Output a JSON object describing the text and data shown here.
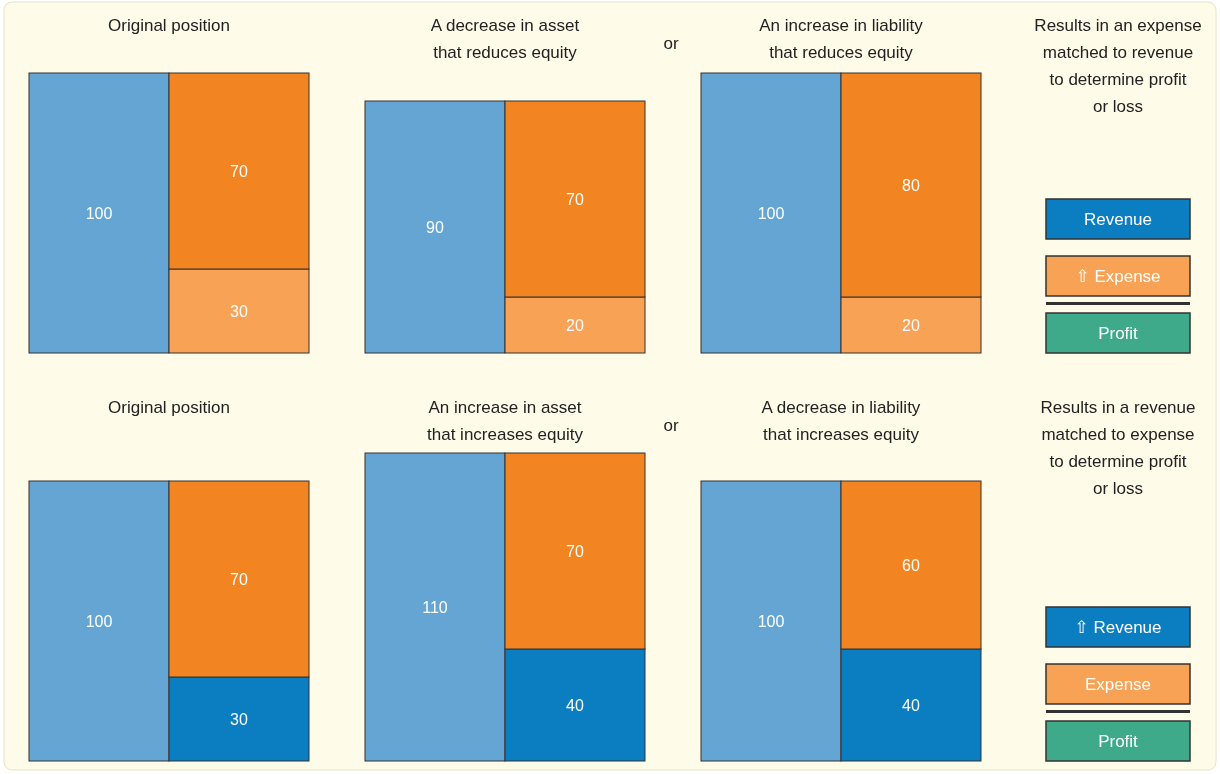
{
  "chart_data": [
    {
      "type": "bar",
      "title": "Original position",
      "categories": [
        null,
        null
      ],
      "stacked": true,
      "data_labels": true,
      "series": [
        {
          "color": "#65a5d4",
          "values": [
            100,
            null
          ]
        },
        {
          "color": "#f7a254",
          "values": [
            null,
            30
          ]
        },
        {
          "color": "#f28522",
          "values": [
            null,
            70
          ]
        }
      ]
    },
    {
      "type": "bar",
      "title": "A decrease in asset\nthat reduces equity",
      "annotations": [
        "or"
      ],
      "categories": [
        null,
        null
      ],
      "stacked": true,
      "data_labels": true,
      "series": [
        {
          "color": "#65a5d4",
          "values": [
            90,
            null
          ]
        },
        {
          "color": "#f7a254",
          "values": [
            null,
            20
          ]
        },
        {
          "color": "#f28522",
          "values": [
            null,
            70
          ]
        }
      ]
    },
    {
      "type": "bar",
      "title": "An increase in liability\nthat reduces equity",
      "categories": [
        null,
        null
      ],
      "stacked": true,
      "data_labels": true,
      "series": [
        {
          "color": "#65a5d4",
          "values": [
            100,
            null
          ]
        },
        {
          "color": "#f7a254",
          "values": [
            null,
            20
          ]
        },
        {
          "color": "#f28522",
          "values": [
            null,
            80
          ]
        }
      ]
    },
    {
      "type": "other",
      "title": "Results in an expense\nmatched to revenue\nto determine profit\nor loss",
      "categories": [
        "Revenue",
        "⇧ Expense",
        "Profit"
      ],
      "colors": [
        "#0b7dc1",
        "#f7a254",
        "#3faa8a"
      ]
    },
    {
      "type": "bar",
      "title": "Original position",
      "categories": [
        null,
        null
      ],
      "stacked": true,
      "data_labels": true,
      "series": [
        {
          "color": "#65a5d4",
          "values": [
            100,
            null
          ]
        },
        {
          "color": "#0b7dc1",
          "values": [
            null,
            30
          ]
        },
        {
          "color": "#f28522",
          "values": [
            null,
            70
          ]
        }
      ]
    },
    {
      "type": "bar",
      "title": "An increase in asset\nthat increases equity",
      "annotations": [
        "or"
      ],
      "categories": [
        null,
        null
      ],
      "stacked": true,
      "data_labels": true,
      "series": [
        {
          "color": "#65a5d4",
          "values": [
            110,
            null
          ]
        },
        {
          "color": "#0b7dc1",
          "values": [
            null,
            40
          ]
        },
        {
          "color": "#f28522",
          "values": [
            null,
            70
          ]
        }
      ]
    },
    {
      "type": "bar",
      "title": "A decrease in liability\nthat increases equity",
      "categories": [
        null,
        null
      ],
      "stacked": true,
      "data_labels": true,
      "series": [
        {
          "color": "#65a5d4",
          "values": [
            100,
            null
          ]
        },
        {
          "color": "#0b7dc1",
          "values": [
            null,
            40
          ]
        },
        {
          "color": "#f28522",
          "values": [
            null,
            60
          ]
        }
      ]
    },
    {
      "type": "other",
      "title": "Results in a revenue\nmatched to expense\nto determine profit\nor loss",
      "categories": [
        "⇧ Revenue",
        "Expense",
        "Profit"
      ],
      "colors": [
        "#0b7dc1",
        "#f7a254",
        "#3faa8a"
      ]
    }
  ]
}
